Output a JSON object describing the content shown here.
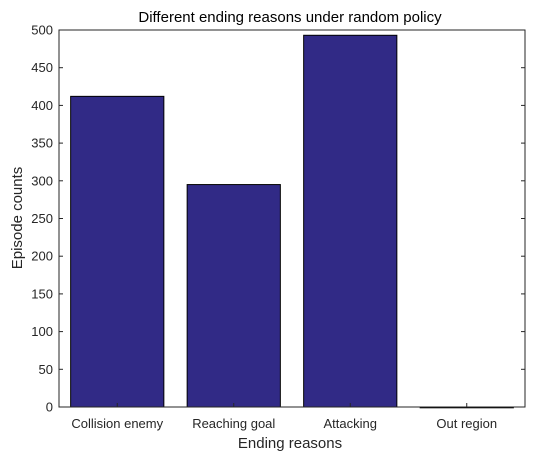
{
  "chart_data": {
    "type": "bar",
    "title": "Different ending reasons under random policy",
    "xlabel": "Ending reasons",
    "ylabel": "Episode counts",
    "categories": [
      "Collision enemy",
      "Reaching goal",
      "Attacking",
      "Out region"
    ],
    "values": [
      412,
      295,
      493,
      0
    ],
    "ylim": [
      0,
      500
    ],
    "yticks": [
      "0",
      "50",
      "100",
      "150",
      "200",
      "250",
      "300",
      "350",
      "400",
      "450",
      "500"
    ],
    "grid": false,
    "bar_color": "#312a86"
  }
}
